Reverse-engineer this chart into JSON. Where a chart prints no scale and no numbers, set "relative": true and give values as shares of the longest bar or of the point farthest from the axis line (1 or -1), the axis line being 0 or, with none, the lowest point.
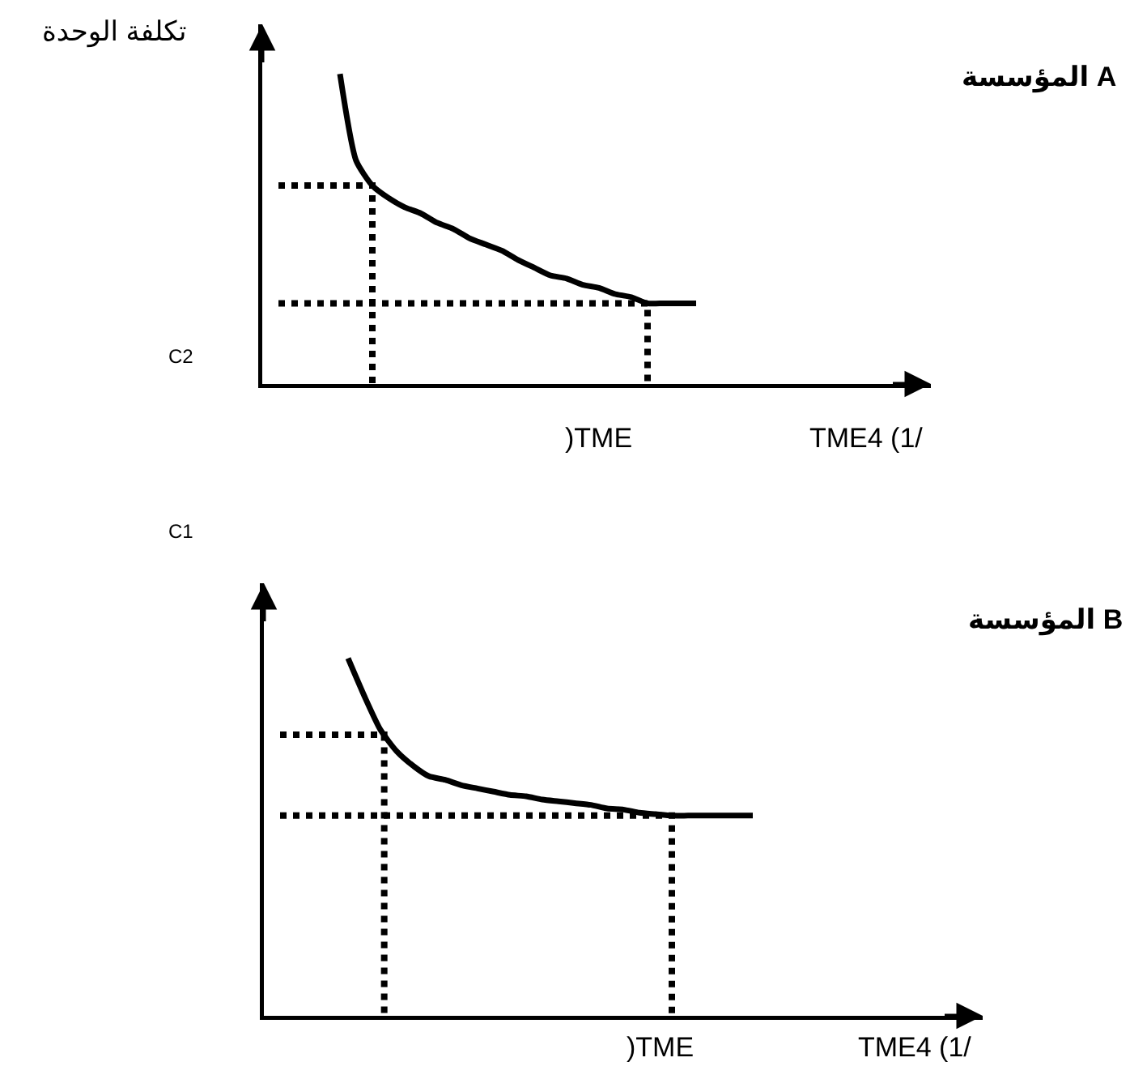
{
  "chart_data": [
    {
      "type": "line",
      "ylabel": "تكلفة الوحدة",
      "relative": true,
      "color": "#000000",
      "categories": [
        null,
        null,
        null,
        null,
        null,
        null,
        null,
        null,
        null,
        null,
        null,
        null,
        null,
        null,
        null,
        null,
        null,
        null,
        null,
        null,
        null,
        null,
        null
      ],
      "values": [
        1,
        0.72,
        0.64,
        0.6,
        0.57,
        0.55,
        0.52,
        0.5,
        0.47,
        0.45,
        0.43,
        0.4,
        0.375,
        0.35,
        0.34,
        0.32,
        0.31,
        0.29,
        0.28,
        0.26,
        0.26,
        0.26,
        0.26
      ],
      "ref_lines": [
        {
          "axis": "y",
          "value": 0.64,
          "line_style": "dotted",
          "color": "#000000"
        },
        {
          "axis": "y",
          "value": 0.26,
          "line_style": "dotted",
          "color": "#000000"
        }
      ],
      "annotations": [
        "المؤسسة A",
        "C2",
        ")TME",
        "TME4 (1/"
      ]
    },
    {
      "type": "line",
      "relative": true,
      "color": "#000000",
      "categories": [
        null,
        null,
        null,
        null,
        null,
        null,
        null,
        null,
        null,
        null,
        null,
        null,
        null,
        null,
        null,
        null,
        null,
        null,
        null,
        null,
        null,
        null,
        null,
        null,
        null,
        null
      ],
      "values": [
        1,
        0.895,
        0.8,
        0.74,
        0.7,
        0.67,
        0.66,
        0.645,
        0.636,
        0.627,
        0.618,
        0.614,
        0.605,
        0.6,
        0.595,
        0.59,
        0.58,
        0.577,
        0.568,
        0.564,
        0.56,
        0.56,
        0.56,
        0.56,
        0.56,
        0.56
      ],
      "ref_lines": [
        {
          "axis": "y",
          "value": 0.786,
          "line_style": "dotted",
          "color": "#000000"
        },
        {
          "axis": "y",
          "value": 0.56,
          "line_style": "dotted",
          "color": "#000000"
        }
      ],
      "annotations": [
        "المؤسسة B",
        "C1",
        ")TME",
        "TME4 (1/"
      ]
    }
  ]
}
